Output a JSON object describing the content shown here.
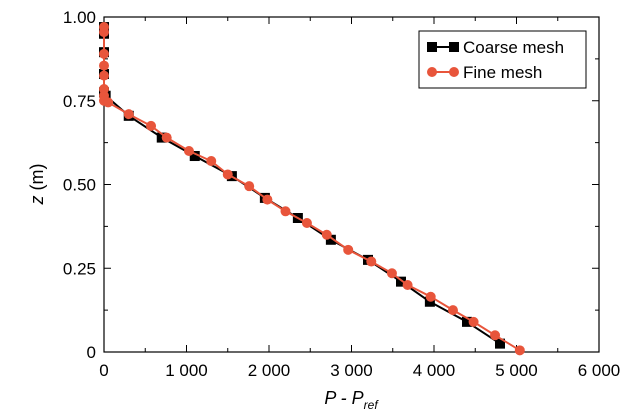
{
  "chart_data": {
    "type": "line",
    "xlabel": {
      "main": "P - P",
      "sub": "ref"
    },
    "ylabel": {
      "italic": "z",
      "rest": " (m)"
    },
    "xlim": [
      0,
      6000
    ],
    "ylim": [
      0,
      1.0
    ],
    "x_ticks": [
      0,
      1000,
      2000,
      3000,
      4000,
      5000,
      6000
    ],
    "x_tick_labels": [
      "0",
      "1 000",
      "2 000",
      "3 000",
      "4 000",
      "5 000",
      "6 000"
    ],
    "y_ticks": [
      0,
      0.25,
      0.5,
      0.75,
      1.0
    ],
    "y_tick_labels": [
      "0",
      "0.25",
      "0.50",
      "0.75",
      "1.00"
    ],
    "legend_position": "top-right",
    "series": [
      {
        "name": "Coarse mesh",
        "color": "#000000",
        "marker": "square",
        "x": [
          0,
          0,
          0,
          0,
          0,
          20,
          300,
          700,
          1100,
          1550,
          1950,
          2350,
          2750,
          3200,
          3600,
          3950,
          4400,
          4800
        ],
        "y": [
          0.97,
          0.95,
          0.895,
          0.83,
          0.775,
          0.765,
          0.705,
          0.64,
          0.585,
          0.525,
          0.46,
          0.4,
          0.335,
          0.275,
          0.21,
          0.15,
          0.09,
          0.025
        ]
      },
      {
        "name": "Fine mesh",
        "color": "#e8553b",
        "marker": "circle",
        "x": [
          0,
          0,
          0,
          0,
          0,
          0,
          0,
          0,
          50,
          300,
          570,
          760,
          1030,
          1300,
          1500,
          1760,
          1980,
          2200,
          2460,
          2700,
          2960,
          3240,
          3490,
          3680,
          3960,
          4230,
          4480,
          4740,
          5040
        ],
        "y": [
          0.97,
          0.955,
          0.89,
          0.855,
          0.825,
          0.785,
          0.765,
          0.75,
          0.745,
          0.71,
          0.675,
          0.64,
          0.6,
          0.57,
          0.53,
          0.495,
          0.455,
          0.42,
          0.385,
          0.35,
          0.305,
          0.27,
          0.235,
          0.2,
          0.165,
          0.125,
          0.09,
          0.05,
          0.005
        ]
      }
    ]
  }
}
